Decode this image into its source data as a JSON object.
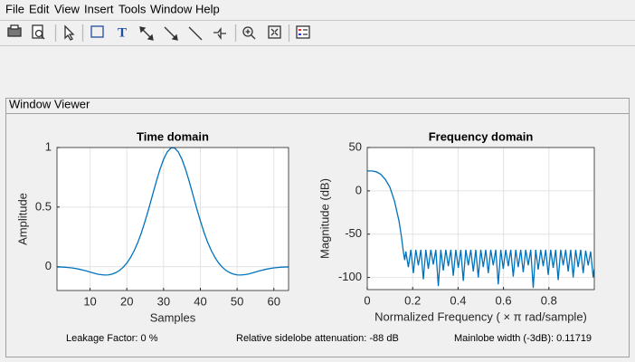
{
  "menu": [
    "File",
    "Edit",
    "View",
    "Insert",
    "Tools",
    "Window",
    "Help"
  ],
  "panel": {
    "title": "Window Viewer"
  },
  "chart_data": [
    {
      "type": "line",
      "title": "Time domain",
      "x_label": "Samples",
      "y_label": "Amplitude",
      "color": "#0072bd",
      "grid": true,
      "x": [
        1,
        2,
        3,
        4,
        5,
        6,
        7,
        8,
        9,
        10,
        11,
        12,
        13,
        14,
        15,
        16,
        17,
        18,
        19,
        20,
        21,
        22,
        23,
        24,
        25,
        26,
        27,
        28,
        29,
        30,
        31,
        32,
        33,
        34,
        35,
        36,
        37,
        38,
        39,
        40,
        41,
        42,
        43,
        44,
        45,
        46,
        47,
        48,
        49,
        50,
        51,
        52,
        53,
        54,
        55,
        56,
        57,
        58,
        59,
        60,
        61,
        62,
        63,
        64
      ],
      "values": [
        -0.002,
        -0.003,
        -0.004,
        -0.007,
        -0.01,
        -0.015,
        -0.021,
        -0.028,
        -0.036,
        -0.045,
        -0.054,
        -0.062,
        -0.067,
        -0.07,
        -0.069,
        -0.062,
        -0.05,
        -0.032,
        -0.005,
        0.03,
        0.076,
        0.134,
        0.204,
        0.288,
        0.385,
        0.491,
        0.602,
        0.713,
        0.815,
        0.901,
        0.963,
        0.996,
        0.996,
        0.963,
        0.901,
        0.815,
        0.713,
        0.602,
        0.491,
        0.385,
        0.288,
        0.204,
        0.134,
        0.076,
        0.03,
        -0.005,
        -0.032,
        -0.05,
        -0.062,
        -0.069,
        -0.07,
        -0.067,
        -0.062,
        -0.054,
        -0.045,
        -0.036,
        -0.028,
        -0.021,
        -0.015,
        -0.01,
        -0.007,
        -0.004,
        -0.003,
        -0.002
      ],
      "xlim": [
        1,
        64
      ],
      "ylim": [
        -0.2,
        1
      ],
      "xticks": [
        10,
        20,
        30,
        40,
        50,
        60
      ],
      "yticks": [
        0,
        0.5,
        1
      ]
    },
    {
      "type": "line",
      "title": "Frequency domain",
      "x_label": "Normalized Frequency  ( × π rad/sample)",
      "y_label": "Magnitude (dB)",
      "color": "#0072bd",
      "grid": true,
      "x": [
        0,
        0.02,
        0.04,
        0.06,
        0.08,
        0.1,
        0.12,
        0.14,
        0.15,
        0.16,
        0.165,
        0.17,
        0.181,
        0.192,
        0.203,
        0.214,
        0.225,
        0.236,
        0.247,
        0.258,
        0.269,
        0.28,
        0.291,
        0.302,
        0.313,
        0.324,
        0.335,
        0.346,
        0.357,
        0.368,
        0.379,
        0.39,
        0.401,
        0.412,
        0.423,
        0.434,
        0.445,
        0.456,
        0.467,
        0.478,
        0.489,
        0.5,
        0.511,
        0.522,
        0.533,
        0.544,
        0.555,
        0.566,
        0.577,
        0.588,
        0.599,
        0.61,
        0.621,
        0.632,
        0.643,
        0.654,
        0.665,
        0.676,
        0.687,
        0.698,
        0.709,
        0.72,
        0.731,
        0.742,
        0.753,
        0.764,
        0.775,
        0.786,
        0.797,
        0.808,
        0.819,
        0.83,
        0.841,
        0.852,
        0.863,
        0.874,
        0.885,
        0.896,
        0.907,
        0.918,
        0.929,
        0.94,
        0.951,
        0.962,
        0.973,
        0.984,
        0.995,
        1
      ],
      "values": [
        23,
        23,
        22,
        19,
        13,
        4,
        -12,
        -35,
        -52,
        -72,
        -80,
        -70,
        -88,
        -68,
        -95,
        -68,
        -86,
        -68,
        -102,
        -68,
        -90,
        -68,
        -85,
        -68,
        -110,
        -68,
        -92,
        -68,
        -87,
        -68,
        -98,
        -68,
        -89,
        -68,
        -104,
        -68,
        -86,
        -68,
        -93,
        -68,
        -100,
        -68,
        -88,
        -68,
        -95,
        -68,
        -86,
        -68,
        -108,
        -68,
        -90,
        -68,
        -87,
        -68,
        -99,
        -68,
        -88,
        -68,
        -94,
        -68,
        -86,
        -68,
        -112,
        -68,
        -91,
        -68,
        -87,
        -68,
        -97,
        -68,
        -89,
        -68,
        -103,
        -68,
        -86,
        -68,
        -93,
        -68,
        -100,
        -68,
        -88,
        -68,
        -95,
        -69,
        -86,
        -70,
        -100,
        -90
      ],
      "xlim": [
        0,
        1
      ],
      "ylim": [
        -114,
        50
      ],
      "xticks": [
        0,
        0.2,
        0.4,
        0.6,
        0.8
      ],
      "yticks": [
        -100,
        -50,
        0,
        50
      ]
    }
  ],
  "footer": [
    "Leakage Factor: 0 %",
    "Relative sidelobe attenuation: -88 dB",
    "Mainlobe width (-3dB): 0.11719"
  ]
}
